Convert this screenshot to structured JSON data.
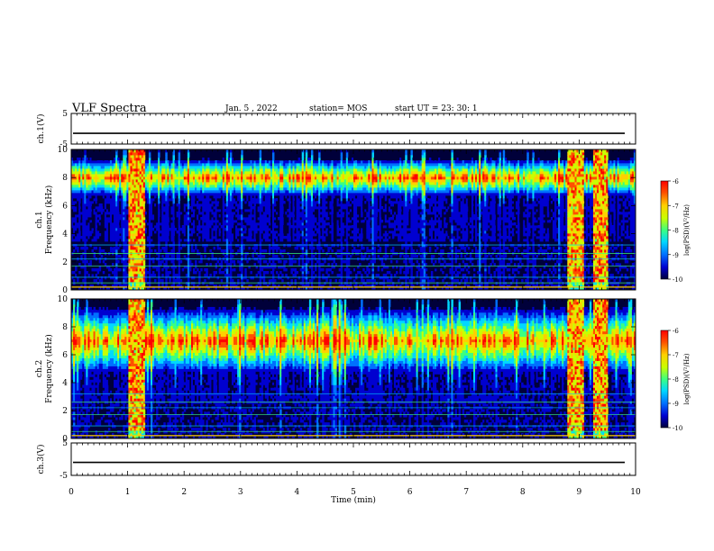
{
  "header": {
    "title": "VLF Spectra",
    "date": "Jan. 5  , 2022",
    "station": "station= MOS",
    "start": "start  UT  =   23: 30: 1"
  },
  "chart_data": [
    {
      "type": "line",
      "panel": "ch1-waveform",
      "ylabel": "ch.1(V)",
      "ylim": [
        -5,
        5
      ],
      "yticks": [
        "5",
        "-5"
      ],
      "xlim": [
        0,
        10
      ],
      "series": [
        {
          "values": [
            -1.5,
            -1.5
          ]
        }
      ]
    },
    {
      "type": "heatmap",
      "panel": "ch1-spectrogram",
      "ylabel_line1": "ch.1",
      "ylabel_line2": "Frequency (kHz)",
      "ylim": [
        0,
        10
      ],
      "yticks": [
        "0",
        "2",
        "4",
        "6",
        "8",
        "10"
      ],
      "xlim": [
        0,
        10
      ],
      "band_center_khz": 8.0,
      "dense_bursts_min": [
        [
          1.0,
          1.3
        ],
        [
          8.8,
          9.1
        ],
        [
          9.25,
          9.5
        ]
      ],
      "colorbar": {
        "label": "log(PSD)(V²/Hz)",
        "range": [
          -10,
          -6
        ],
        "ticks": [
          "-6",
          "-7",
          "-8",
          "-9",
          "-10"
        ]
      }
    },
    {
      "type": "heatmap",
      "panel": "ch2-spectrogram",
      "ylabel_line1": "ch.2",
      "ylabel_line2": "Frequency (kHz)",
      "ylim": [
        0,
        10
      ],
      "yticks": [
        "0",
        "2",
        "4",
        "6",
        "8",
        "10"
      ],
      "xlim": [
        0,
        10
      ],
      "band_center_khz": 7.0,
      "dense_bursts_min": [
        [
          1.0,
          1.3
        ],
        [
          8.8,
          9.1
        ],
        [
          9.25,
          9.5
        ]
      ],
      "colorbar": {
        "label": "log(PSD)(V²/Hz)",
        "range": [
          -10,
          -6
        ],
        "ticks": [
          "-6",
          "-7",
          "-8",
          "-9",
          "-10"
        ]
      }
    },
    {
      "type": "line",
      "panel": "ch3-waveform",
      "ylabel": "ch.3(V)",
      "ylim": [
        -5,
        5
      ],
      "yticks": [
        "5",
        "-5"
      ],
      "xlim": [
        0,
        10
      ],
      "series": [
        {
          "values": [
            -1.0,
            -1.0
          ]
        }
      ]
    }
  ],
  "xaxis": {
    "label": "Time  (min)",
    "ticks": [
      "0",
      "1",
      "2",
      "3",
      "4",
      "5",
      "6",
      "7",
      "8",
      "9",
      "10"
    ]
  },
  "colors": {
    "cmap": [
      "#00003a",
      "#0000d0",
      "#0070ff",
      "#00d8ff",
      "#3cff80",
      "#c8ff00",
      "#ffd000",
      "#ff5000",
      "#ff0000"
    ]
  }
}
